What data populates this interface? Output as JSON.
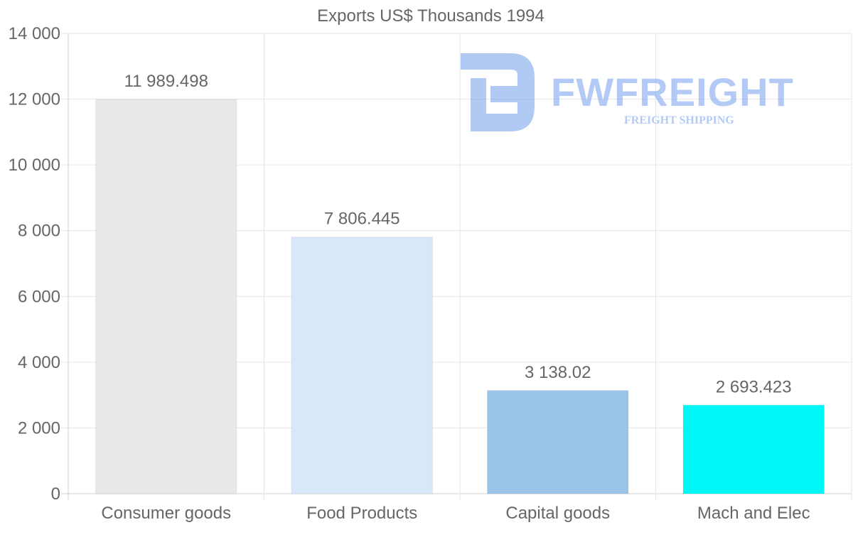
{
  "chart_data": {
    "type": "bar",
    "title": "Exports US$ Thousands 1994",
    "categories": [
      "Consumer goods",
      "Food Products",
      "Capital goods",
      "Mach and Elec"
    ],
    "values": [
      11989.498,
      7806.445,
      3138.02,
      2693.423
    ],
    "value_labels": [
      "11 989.498",
      "7 806.445",
      "3 138.02",
      "2 693.423"
    ],
    "bar_colors": [
      "#e8e8e8",
      "#d9e8f9",
      "#9ac4e8",
      "#00f7f7"
    ],
    "ylim": [
      0,
      14000
    ],
    "yticks": [
      0,
      2000,
      4000,
      6000,
      8000,
      10000,
      12000,
      14000
    ],
    "ytick_labels": [
      "0",
      "2 000",
      "4 000",
      "6 000",
      "8 000",
      "10 000",
      "12 000",
      "14 000"
    ],
    "xlabel": "",
    "ylabel": "",
    "grid": true,
    "legend": "none"
  },
  "watermark": {
    "brand": "FWFREIGHT",
    "tagline": "FREIGHT SHIPPING",
    "color": "#7ea7ee"
  }
}
